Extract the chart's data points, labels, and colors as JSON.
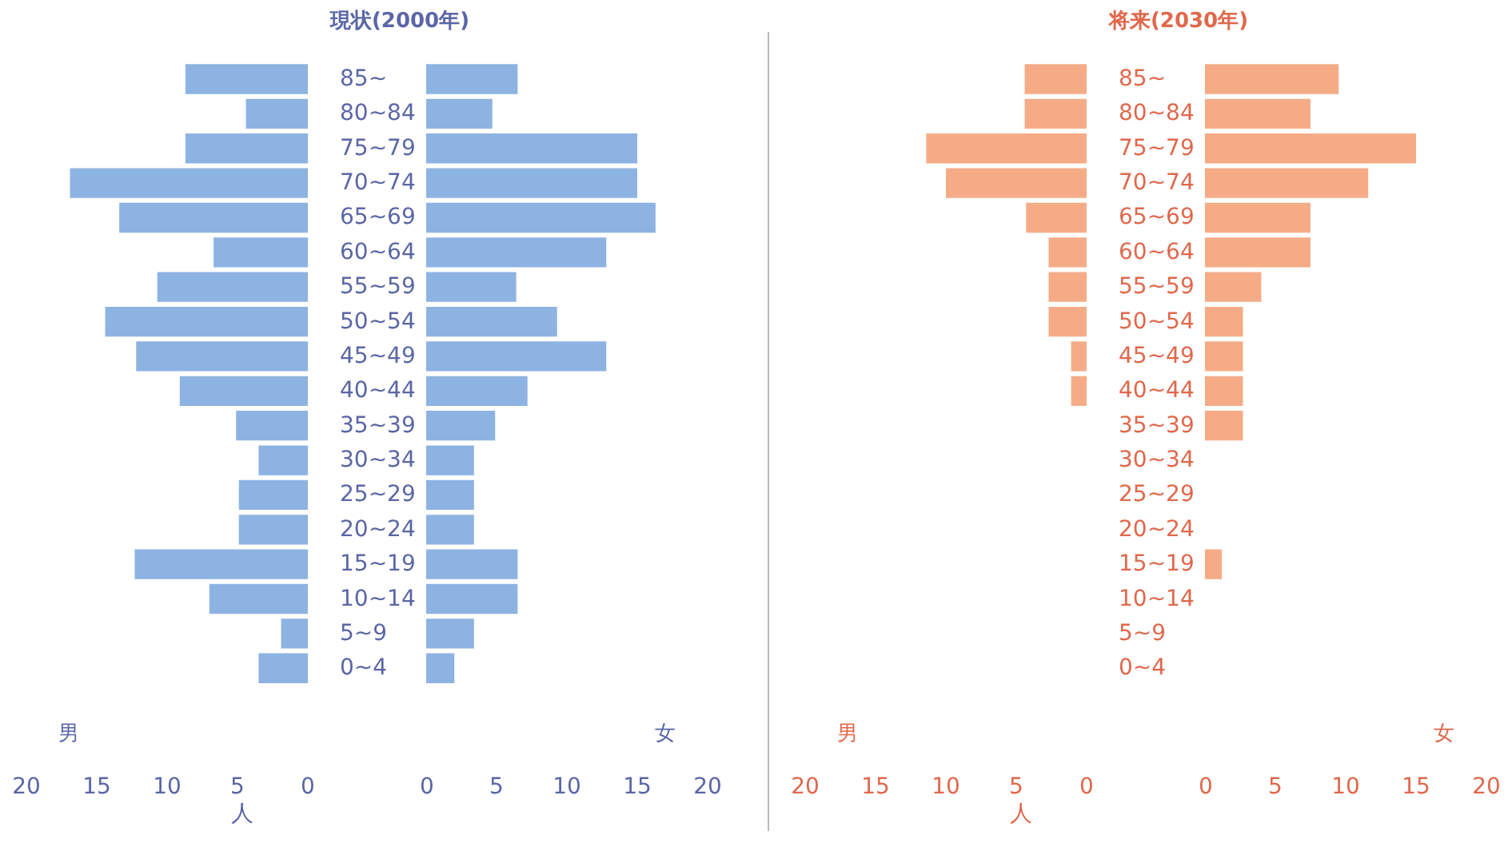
{
  "chart_data": [
    {
      "type": "bar",
      "orientation": "horizontal",
      "title": "現状(2000年)",
      "categories": [
        "85~",
        "80~84",
        "75~79",
        "70~74",
        "65~69",
        "60~64",
        "55~59",
        "50~54",
        "45~49",
        "40~44",
        "35~39",
        "30~34",
        "25~29",
        "20~24",
        "15~19",
        "10~14",
        "5~9",
        "0~4"
      ],
      "series": [
        {
          "name": "男",
          "color": "#8db3e2",
          "values": [
            8.7,
            4.4,
            8.7,
            16.9,
            13.4,
            6.7,
            10.7,
            14.4,
            12.2,
            9.1,
            5.1,
            3.5,
            4.9,
            4.9,
            12.3,
            7,
            1.9,
            3.5
          ]
        }
      ],
      "xlim": [
        20,
        0
      ],
      "xticks": [
        20,
        15,
        10,
        5,
        0
      ],
      "annotations": [
        "人"
      ]
    },
    {
      "type": "bar",
      "orientation": "horizontal",
      "categories": [
        null,
        null,
        null,
        null,
        null,
        null,
        null,
        null,
        null,
        null,
        null,
        null,
        null,
        null,
        null,
        null,
        null,
        null
      ],
      "series": [
        {
          "name": "女",
          "color": "#8db3e2",
          "values": [
            6.5,
            4.7,
            15,
            15,
            16.3,
            12.8,
            6.4,
            9.3,
            12.8,
            7.2,
            4.9,
            3.4,
            3.4,
            3.4,
            6.5,
            6.5,
            3.4,
            2
          ]
        }
      ],
      "xlim": [
        0,
        20
      ],
      "xticks": [
        0,
        5,
        10,
        15,
        20
      ],
      "tick_labels": "x"
    },
    {
      "type": "bar",
      "orientation": "horizontal",
      "title": "将来(2030年)",
      "categories": [
        "85~",
        "80~84",
        "75~79",
        "70~74",
        "65~69",
        "60~64",
        "55~59",
        "50~54",
        "45~49",
        "40~44",
        "35~39",
        "30~34",
        "25~29",
        "20~24",
        "15~19",
        "10~14",
        "5~9",
        "0~4"
      ],
      "series": [
        {
          "name": "男",
          "color": "#f5ac86",
          "values": [
            4.4,
            4.4,
            11.4,
            10,
            4.3,
            2.7,
            2.7,
            2.7,
            1.1,
            1.1,
            0,
            0,
            0,
            0,
            0,
            0,
            0,
            0
          ]
        }
      ],
      "xlim": [
        20,
        0
      ],
      "xticks": [
        20,
        15,
        10,
        5,
        0
      ],
      "annotations": [
        "人"
      ]
    },
    {
      "type": "bar",
      "orientation": "horizontal",
      "categories": [
        null,
        null,
        null,
        null,
        null,
        null,
        null,
        null,
        null,
        null,
        null,
        null,
        null,
        null,
        null,
        null,
        null,
        null
      ],
      "series": [
        {
          "name": "女",
          "color": "#f5ac86",
          "values": [
            9.5,
            7.5,
            15,
            11.6,
            7.5,
            7.5,
            4,
            2.7,
            2.7,
            2.7,
            2.7,
            0,
            0,
            0,
            1.2,
            0,
            0,
            0
          ]
        }
      ],
      "xlim": [
        0,
        20
      ],
      "xticks": [
        0,
        5,
        10,
        15,
        20
      ],
      "tick_labels": "x"
    }
  ]
}
